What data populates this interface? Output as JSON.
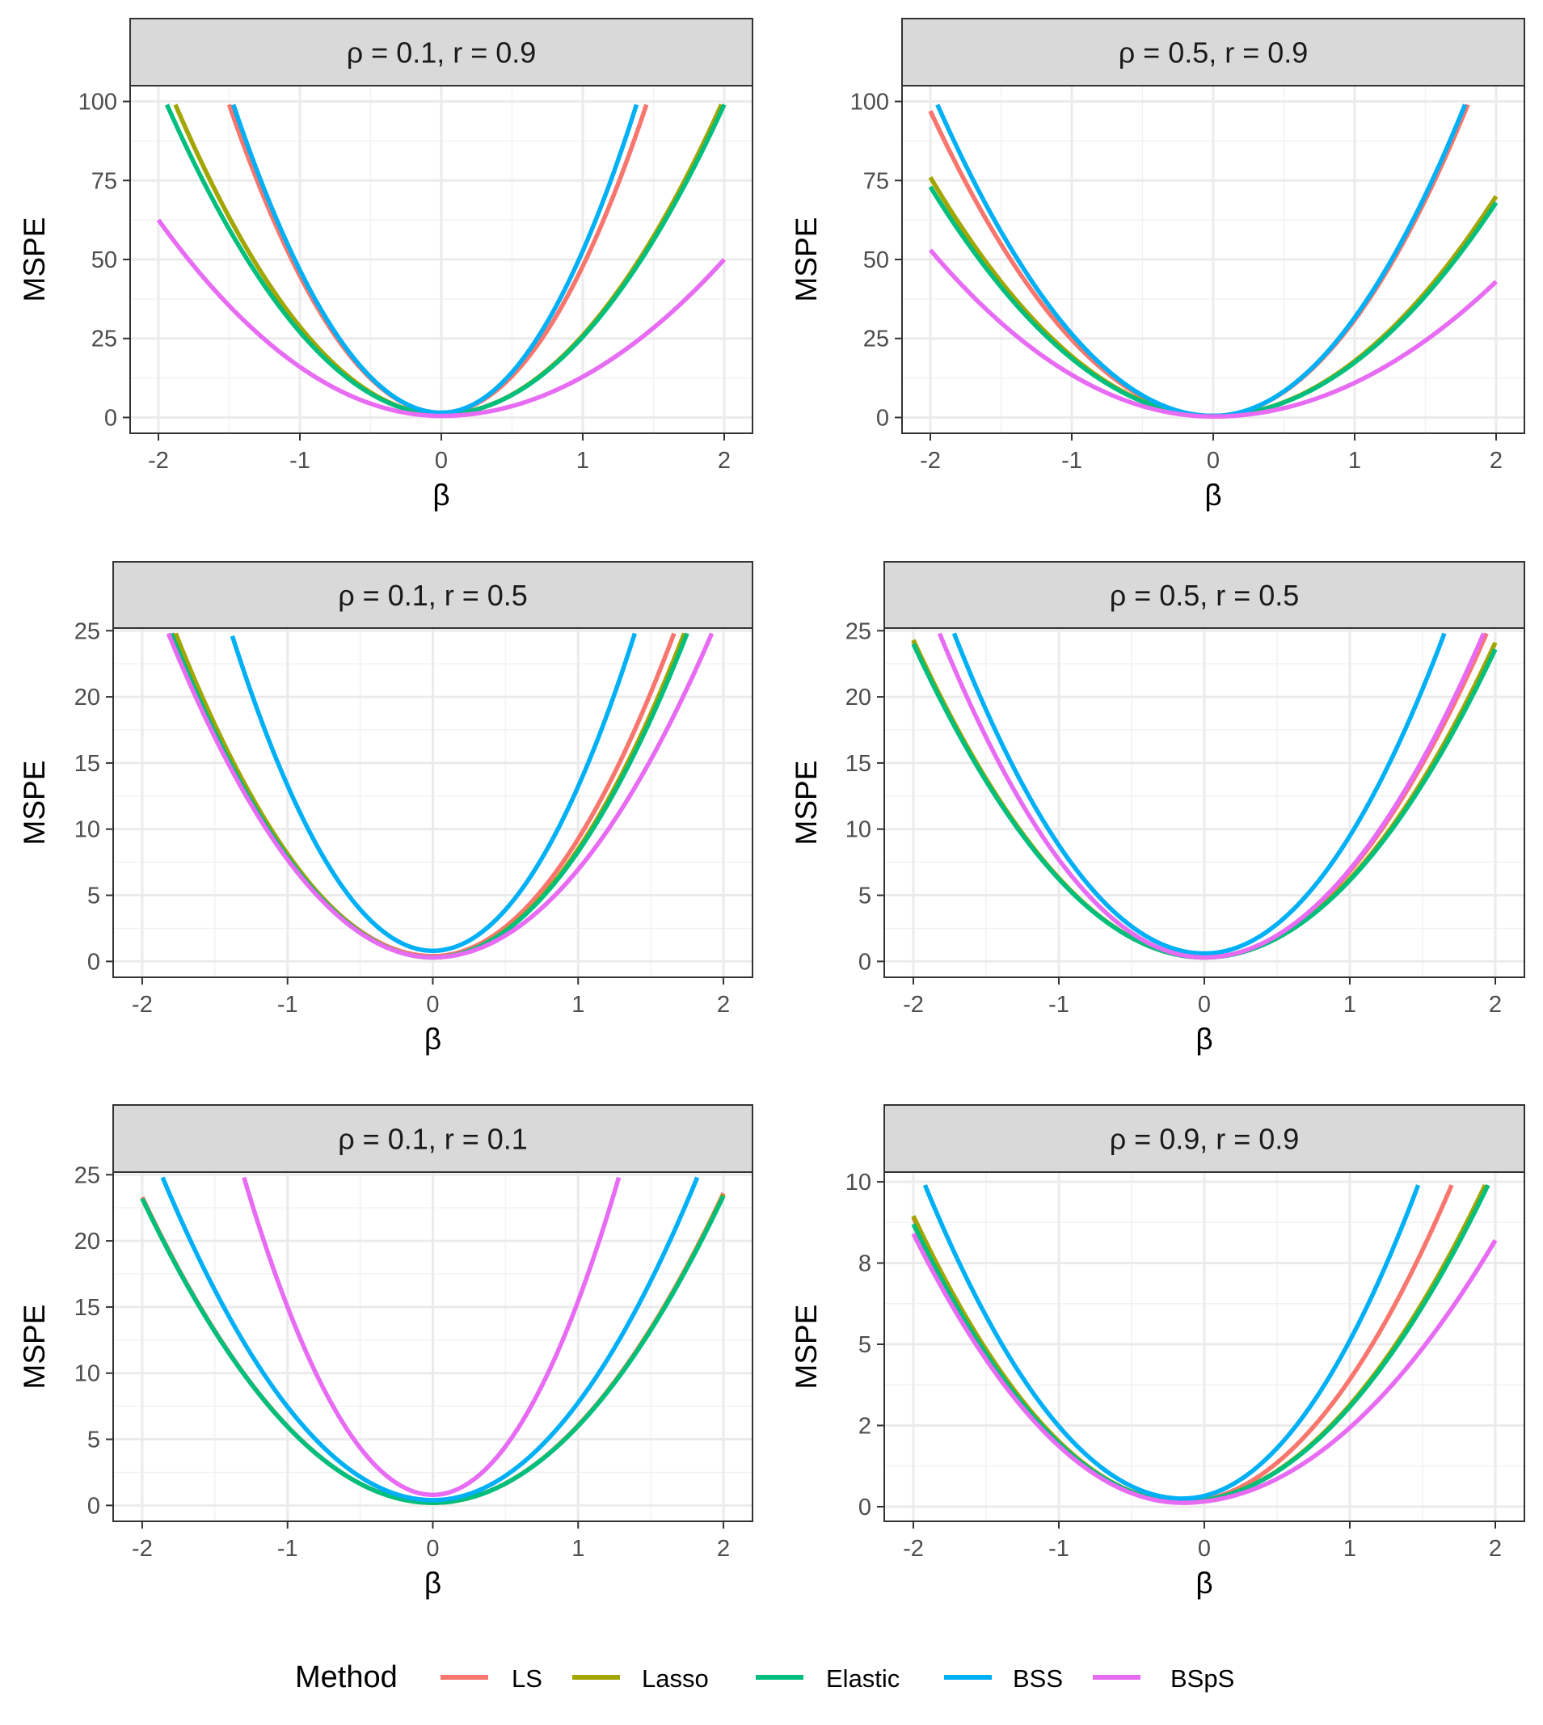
{
  "chart_data": [
    {
      "type": "line",
      "title": "ρ = 0.1,  r = 0.9",
      "xlabel": "β",
      "ylabel": "MSPE",
      "xlim": [
        -2.2,
        2.2
      ],
      "ylim": [
        -5,
        105
      ],
      "xticks": [
        -2,
        -1,
        0,
        1,
        2
      ],
      "xtick_labels": [
        "-2",
        "-1",
        "0",
        "1",
        "2"
      ],
      "yticks": [
        0,
        25,
        50,
        75,
        100
      ],
      "ytick_labels": [
        "0",
        "25",
        "50",
        "75",
        "100"
      ],
      "series": [
        {
          "name": "LS",
          "x": [
            -1.5,
            0,
            1.45
          ],
          "y": [
            99,
            1.5,
            99
          ]
        },
        {
          "name": "Lasso",
          "x": [
            -1.88,
            0,
            1.98
          ],
          "y": [
            99,
            1,
            99
          ]
        },
        {
          "name": "Elastic",
          "x": [
            -1.94,
            0,
            2.0
          ],
          "y": [
            99,
            1,
            99
          ]
        },
        {
          "name": "BSS",
          "x": [
            -1.47,
            0,
            1.38
          ],
          "y": [
            99,
            1.5,
            99
          ]
        },
        {
          "name": "BSpS",
          "x": [
            -2.0,
            0,
            2.0
          ],
          "y": [
            62.5,
            0.5,
            50
          ]
        }
      ]
    },
    {
      "type": "line",
      "title": "ρ = 0.5,  r = 0.9",
      "xlabel": "β",
      "ylabel": "MSPE",
      "xlim": [
        -2.2,
        2.2
      ],
      "ylim": [
        -5,
        105
      ],
      "xticks": [
        -2,
        -1,
        0,
        1,
        2
      ],
      "xtick_labels": [
        "-2",
        "-1",
        "0",
        "1",
        "2"
      ],
      "yticks": [
        0,
        25,
        50,
        75,
        100
      ],
      "ytick_labels": [
        "0",
        "25",
        "50",
        "75",
        "100"
      ],
      "series": [
        {
          "name": "LS",
          "x": [
            -2.0,
            0,
            1.8
          ],
          "y": [
            97,
            0.5,
            99
          ]
        },
        {
          "name": "Lasso",
          "x": [
            -2.0,
            0,
            2.0
          ],
          "y": [
            76,
            0.5,
            70
          ]
        },
        {
          "name": "Elastic",
          "x": [
            -2.0,
            0,
            2.0
          ],
          "y": [
            73,
            0.5,
            68
          ]
        },
        {
          "name": "BSS",
          "x": [
            -1.95,
            0,
            1.78
          ],
          "y": [
            99,
            0.5,
            99
          ]
        },
        {
          "name": "BSpS",
          "x": [
            -2.0,
            0,
            2.0
          ],
          "y": [
            53,
            0.3,
            43
          ]
        }
      ]
    },
    {
      "type": "line",
      "title": "ρ = 0.1,  r = 0.5",
      "xlabel": "β",
      "ylabel": "MSPE",
      "xlim": [
        -2.2,
        2.2
      ],
      "ylim": [
        -1.2,
        25.2
      ],
      "xticks": [
        -2,
        -1,
        0,
        1,
        2
      ],
      "xtick_labels": [
        "-2",
        "-1",
        "0",
        "1",
        "2"
      ],
      "yticks": [
        0,
        5,
        10,
        15,
        20,
        25
      ],
      "ytick_labels": [
        "0",
        "5",
        "10",
        "15",
        "20",
        "25"
      ],
      "series": [
        {
          "name": "LS",
          "x": [
            -1.79,
            0,
            1.66
          ],
          "y": [
            24.8,
            0.4,
            24.8
          ]
        },
        {
          "name": "Lasso",
          "x": [
            -1.77,
            0,
            1.73
          ],
          "y": [
            24.8,
            0.3,
            24.8
          ]
        },
        {
          "name": "Elastic",
          "x": [
            -1.8,
            0,
            1.75
          ],
          "y": [
            24.8,
            0.3,
            24.8
          ]
        },
        {
          "name": "BSS",
          "x": [
            -1.38,
            0,
            1.39
          ],
          "y": [
            24.6,
            0.8,
            24.8
          ]
        },
        {
          "name": "BSpS",
          "x": [
            -1.82,
            0,
            1.92
          ],
          "y": [
            24.8,
            0.3,
            24.8
          ]
        }
      ]
    },
    {
      "type": "line",
      "title": "ρ = 0.5,  r = 0.5",
      "xlabel": "β",
      "ylabel": "MSPE",
      "xlim": [
        -2.2,
        2.2
      ],
      "ylim": [
        -1.2,
        25.2
      ],
      "xticks": [
        -2,
        -1,
        0,
        1,
        2
      ],
      "xtick_labels": [
        "-2",
        "-1",
        "0",
        "1",
        "2"
      ],
      "yticks": [
        0,
        5,
        10,
        15,
        20,
        25
      ],
      "ytick_labels": [
        "0",
        "5",
        "10",
        "15",
        "20",
        "25"
      ],
      "series": [
        {
          "name": "LS",
          "x": [
            -2.0,
            0,
            1.94
          ],
          "y": [
            24.2,
            0.3,
            24.8
          ]
        },
        {
          "name": "Lasso",
          "x": [
            -2.0,
            0,
            2.0
          ],
          "y": [
            24.3,
            0.3,
            24.1
          ]
        },
        {
          "name": "Elastic",
          "x": [
            -2.0,
            0,
            2.0
          ],
          "y": [
            24.0,
            0.3,
            23.6
          ]
        },
        {
          "name": "BSS",
          "x": [
            -1.72,
            0,
            1.65
          ],
          "y": [
            24.8,
            0.6,
            24.8
          ]
        },
        {
          "name": "BSpS",
          "x": [
            -1.82,
            0,
            1.92
          ],
          "y": [
            24.8,
            0.3,
            24.8
          ]
        }
      ]
    },
    {
      "type": "line",
      "title": "ρ = 0.1,  r = 0.1",
      "xlabel": "β",
      "ylabel": "MSPE",
      "xlim": [
        -2.2,
        2.2
      ],
      "ylim": [
        -1.2,
        25.2
      ],
      "xticks": [
        -2,
        -1,
        0,
        1,
        2
      ],
      "xtick_labels": [
        "-2",
        "-1",
        "0",
        "1",
        "2"
      ],
      "yticks": [
        0,
        5,
        10,
        15,
        20,
        25
      ],
      "ytick_labels": [
        "0",
        "5",
        "10",
        "15",
        "20",
        "25"
      ],
      "series": [
        {
          "name": "LS",
          "x": [
            -2.0,
            0,
            2.0
          ],
          "y": [
            23.3,
            0.2,
            23.6
          ]
        },
        {
          "name": "Lasso",
          "x": [
            -2.0,
            0,
            2.0
          ],
          "y": [
            23.2,
            0.2,
            23.5
          ]
        },
        {
          "name": "Elastic",
          "x": [
            -2.0,
            0,
            2.0
          ],
          "y": [
            23.2,
            0.2,
            23.4
          ]
        },
        {
          "name": "BSS",
          "x": [
            -1.86,
            0,
            1.82
          ],
          "y": [
            24.8,
            0.4,
            24.8
          ]
        },
        {
          "name": "BSpS",
          "x": [
            -1.3,
            0,
            1.28
          ],
          "y": [
            24.8,
            0.8,
            24.8
          ]
        }
      ]
    },
    {
      "type": "line",
      "title": "ρ = 0.9,  r = 0.9",
      "xlabel": "β",
      "ylabel": "MSPE",
      "xlim": [
        -2.2,
        2.2
      ],
      "ylim": [
        -0.45,
        10.3
      ],
      "xticks": [
        -2,
        -1,
        0,
        1,
        2
      ],
      "xtick_labels": [
        "-2",
        "-1",
        "0",
        "1",
        "2"
      ],
      "yticks": [
        0,
        2.5,
        5,
        7.5,
        10
      ],
      "ytick_labels": [
        "0",
        "2",
        "5",
        "8",
        "10"
      ],
      "series": [
        {
          "name": "LS",
          "x": [
            -2.0,
            -0.15,
            1.7
          ],
          "y": [
            8.9,
            0.15,
            9.9
          ]
        },
        {
          "name": "Lasso",
          "x": [
            -2.0,
            -0.15,
            1.93
          ],
          "y": [
            8.95,
            0.15,
            9.9
          ]
        },
        {
          "name": "Elastic",
          "x": [
            -2.0,
            -0.15,
            1.95
          ],
          "y": [
            8.7,
            0.15,
            9.9
          ]
        },
        {
          "name": "BSS",
          "x": [
            -1.92,
            -0.15,
            1.47
          ],
          "y": [
            9.9,
            0.25,
            9.9
          ]
        },
        {
          "name": "BSpS",
          "x": [
            -2.0,
            -0.15,
            2.0
          ],
          "y": [
            8.4,
            0.12,
            8.2
          ]
        }
      ]
    }
  ],
  "legend": {
    "title": "Method",
    "items": [
      {
        "label": "LS",
        "color": "#F8766D"
      },
      {
        "label": "Lasso",
        "color": "#A3A500"
      },
      {
        "label": "Elastic",
        "color": "#00BF7D"
      },
      {
        "label": "BSS",
        "color": "#00B0F6"
      },
      {
        "label": "BSpS",
        "color": "#E76BF3"
      }
    ]
  },
  "colors": {
    "LS": "#F8766D",
    "Lasso": "#A3A500",
    "Elastic": "#00BF7D",
    "BSS": "#00B0F6",
    "BSpS": "#E76BF3"
  }
}
